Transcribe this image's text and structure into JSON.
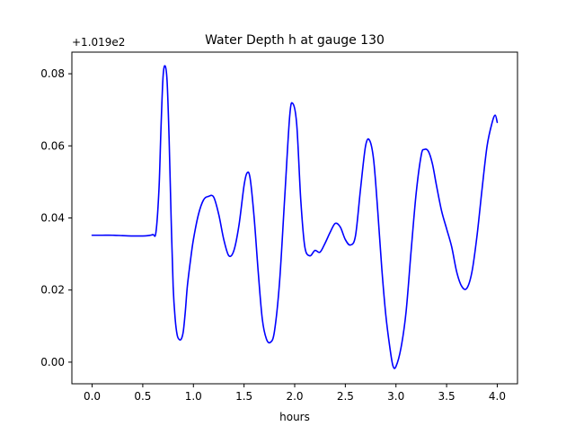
{
  "chart_data": {
    "type": "line",
    "title": "Water Depth h at gauge 130",
    "xlabel": "hours",
    "ylabel": "",
    "offset_label": "+1.019e2",
    "xlim": [
      -0.2,
      4.2
    ],
    "ylim": [
      -0.006,
      0.086
    ],
    "xticks": [
      0.0,
      0.5,
      1.0,
      1.5,
      2.0,
      2.5,
      3.0,
      3.5,
      4.0
    ],
    "xtick_labels": [
      "0.0",
      "0.5",
      "1.0",
      "1.5",
      "2.0",
      "2.5",
      "3.0",
      "3.5",
      "4.0"
    ],
    "yticks": [
      0.0,
      0.02,
      0.04,
      0.06,
      0.08
    ],
    "ytick_labels": [
      "0.00",
      "0.02",
      "0.04",
      "0.06",
      "0.08"
    ],
    "grid": false,
    "series": [
      {
        "color": "#0000ff",
        "x": [
          0.0,
          0.1,
          0.2,
          0.3,
          0.4,
          0.5,
          0.55,
          0.6,
          0.63,
          0.66,
          0.68,
          0.7,
          0.72,
          0.74,
          0.76,
          0.78,
          0.8,
          0.82,
          0.84,
          0.86,
          0.88,
          0.9,
          0.92,
          0.94,
          0.97,
          1.0,
          1.05,
          1.1,
          1.15,
          1.2,
          1.25,
          1.3,
          1.35,
          1.4,
          1.45,
          1.5,
          1.53,
          1.56,
          1.6,
          1.64,
          1.68,
          1.72,
          1.76,
          1.8,
          1.85,
          1.9,
          1.95,
          1.98,
          2.02,
          2.06,
          2.1,
          2.15,
          2.2,
          2.25,
          2.3,
          2.35,
          2.4,
          2.45,
          2.5,
          2.55,
          2.6,
          2.65,
          2.7,
          2.74,
          2.78,
          2.82,
          2.86,
          2.9,
          2.94,
          2.97,
          3.0,
          3.05,
          3.1,
          3.15,
          3.2,
          3.25,
          3.28,
          3.32,
          3.36,
          3.4,
          3.45,
          3.5,
          3.55,
          3.6,
          3.65,
          3.7,
          3.75,
          3.8,
          3.85,
          3.9,
          3.95,
          3.98,
          4.0
        ],
        "y": [
          0.0352,
          0.0352,
          0.0352,
          0.0351,
          0.035,
          0.035,
          0.0351,
          0.0354,
          0.036,
          0.048,
          0.065,
          0.079,
          0.0822,
          0.078,
          0.062,
          0.04,
          0.021,
          0.012,
          0.0075,
          0.0063,
          0.0064,
          0.0085,
          0.014,
          0.021,
          0.028,
          0.034,
          0.041,
          0.045,
          0.046,
          0.0458,
          0.041,
          0.034,
          0.0295,
          0.031,
          0.038,
          0.049,
          0.0525,
          0.051,
          0.04,
          0.025,
          0.012,
          0.0065,
          0.0055,
          0.0085,
          0.022,
          0.045,
          0.068,
          0.0718,
          0.066,
          0.045,
          0.032,
          0.0295,
          0.031,
          0.0305,
          0.033,
          0.036,
          0.0385,
          0.0375,
          0.034,
          0.0325,
          0.035,
          0.048,
          0.06,
          0.0615,
          0.056,
          0.042,
          0.026,
          0.013,
          0.004,
          -0.001,
          -0.0012,
          0.004,
          0.014,
          0.031,
          0.047,
          0.0575,
          0.059,
          0.0585,
          0.055,
          0.049,
          0.042,
          0.037,
          0.032,
          0.025,
          0.021,
          0.0205,
          0.025,
          0.035,
          0.048,
          0.06,
          0.0665,
          0.0685,
          0.0665
        ]
      }
    ]
  }
}
